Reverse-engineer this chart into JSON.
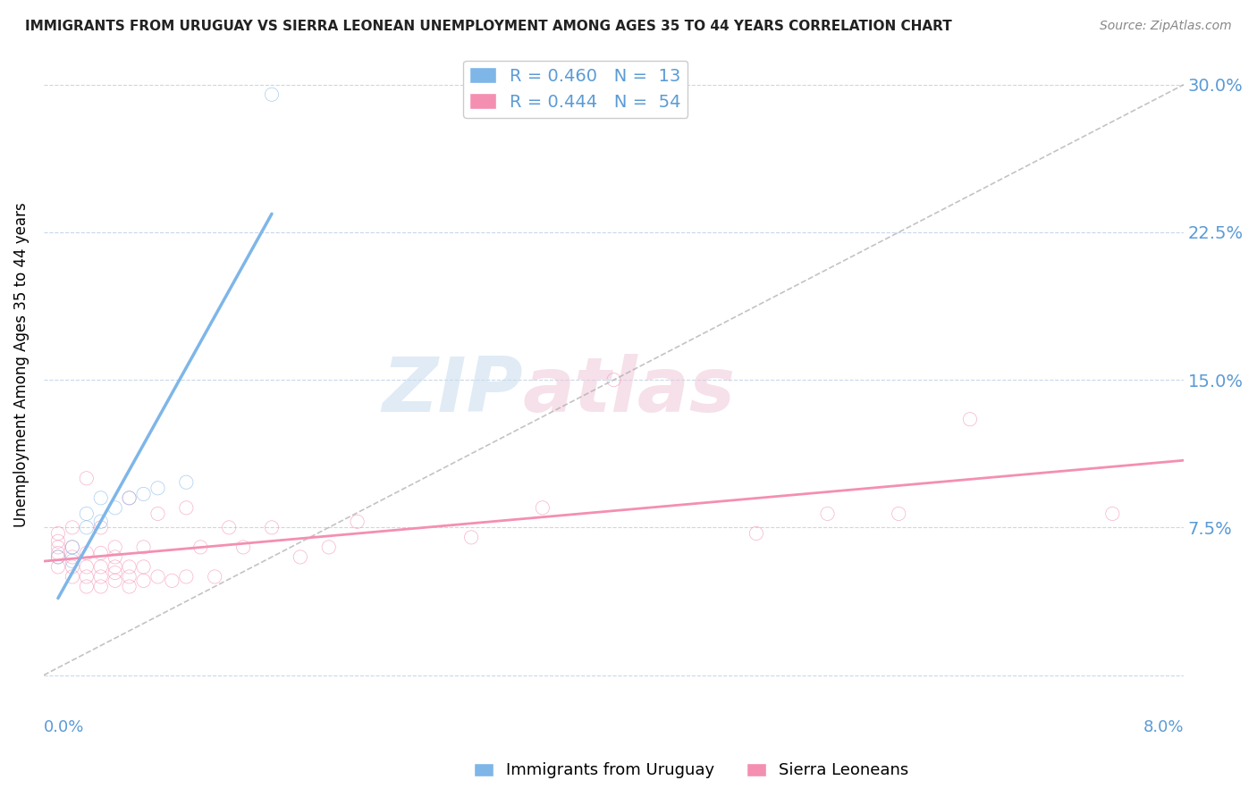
{
  "title": "IMMIGRANTS FROM URUGUAY VS SIERRA LEONEAN UNEMPLOYMENT AMONG AGES 35 TO 44 YEARS CORRELATION CHART",
  "source": "Source: ZipAtlas.com",
  "ylabel": "Unemployment Among Ages 35 to 44 years",
  "y_tick_labels": [
    "",
    "7.5%",
    "15.0%",
    "22.5%",
    "30.0%"
  ],
  "y_ticks": [
    0.0,
    0.075,
    0.15,
    0.225,
    0.3
  ],
  "x_lim": [
    0.0,
    0.08
  ],
  "y_lim": [
    -0.005,
    0.32
  ],
  "legend_r1": "R = 0.460",
  "legend_n1": "N =  13",
  "legend_r2": "R = 0.444",
  "legend_n2": "N =  54",
  "legend_label1": "Immigrants from Uruguay",
  "legend_label2": "Sierra Leoneans",
  "color_uruguay": "#7EB6E8",
  "color_sierra": "#F48FB1",
  "color_axis_labels": "#5B9BD5",
  "background_color": "#FFFFFF",
  "watermark_zip": "ZIP",
  "watermark_atlas": "atlas",
  "uruguay_x": [
    0.001,
    0.002,
    0.002,
    0.003,
    0.003,
    0.004,
    0.004,
    0.005,
    0.006,
    0.007,
    0.008,
    0.01,
    0.016
  ],
  "uruguay_y": [
    0.06,
    0.058,
    0.065,
    0.075,
    0.082,
    0.078,
    0.09,
    0.085,
    0.09,
    0.092,
    0.095,
    0.098,
    0.295
  ],
  "sierra_x": [
    0.001,
    0.001,
    0.001,
    0.001,
    0.001,
    0.001,
    0.002,
    0.002,
    0.002,
    0.002,
    0.002,
    0.003,
    0.003,
    0.003,
    0.003,
    0.003,
    0.004,
    0.004,
    0.004,
    0.004,
    0.004,
    0.005,
    0.005,
    0.005,
    0.005,
    0.005,
    0.006,
    0.006,
    0.006,
    0.006,
    0.007,
    0.007,
    0.007,
    0.008,
    0.008,
    0.009,
    0.01,
    0.01,
    0.011,
    0.012,
    0.013,
    0.014,
    0.016,
    0.018,
    0.02,
    0.022,
    0.03,
    0.035,
    0.04,
    0.05,
    0.055,
    0.06,
    0.065,
    0.075
  ],
  "sierra_y": [
    0.055,
    0.06,
    0.062,
    0.065,
    0.068,
    0.072,
    0.05,
    0.055,
    0.06,
    0.065,
    0.075,
    0.045,
    0.05,
    0.055,
    0.062,
    0.1,
    0.045,
    0.05,
    0.055,
    0.062,
    0.075,
    0.048,
    0.052,
    0.055,
    0.06,
    0.065,
    0.045,
    0.05,
    0.055,
    0.09,
    0.048,
    0.055,
    0.065,
    0.05,
    0.082,
    0.048,
    0.05,
    0.085,
    0.065,
    0.05,
    0.075,
    0.065,
    0.075,
    0.06,
    0.065,
    0.078,
    0.07,
    0.085,
    0.15,
    0.072,
    0.082,
    0.082,
    0.13,
    0.082
  ]
}
